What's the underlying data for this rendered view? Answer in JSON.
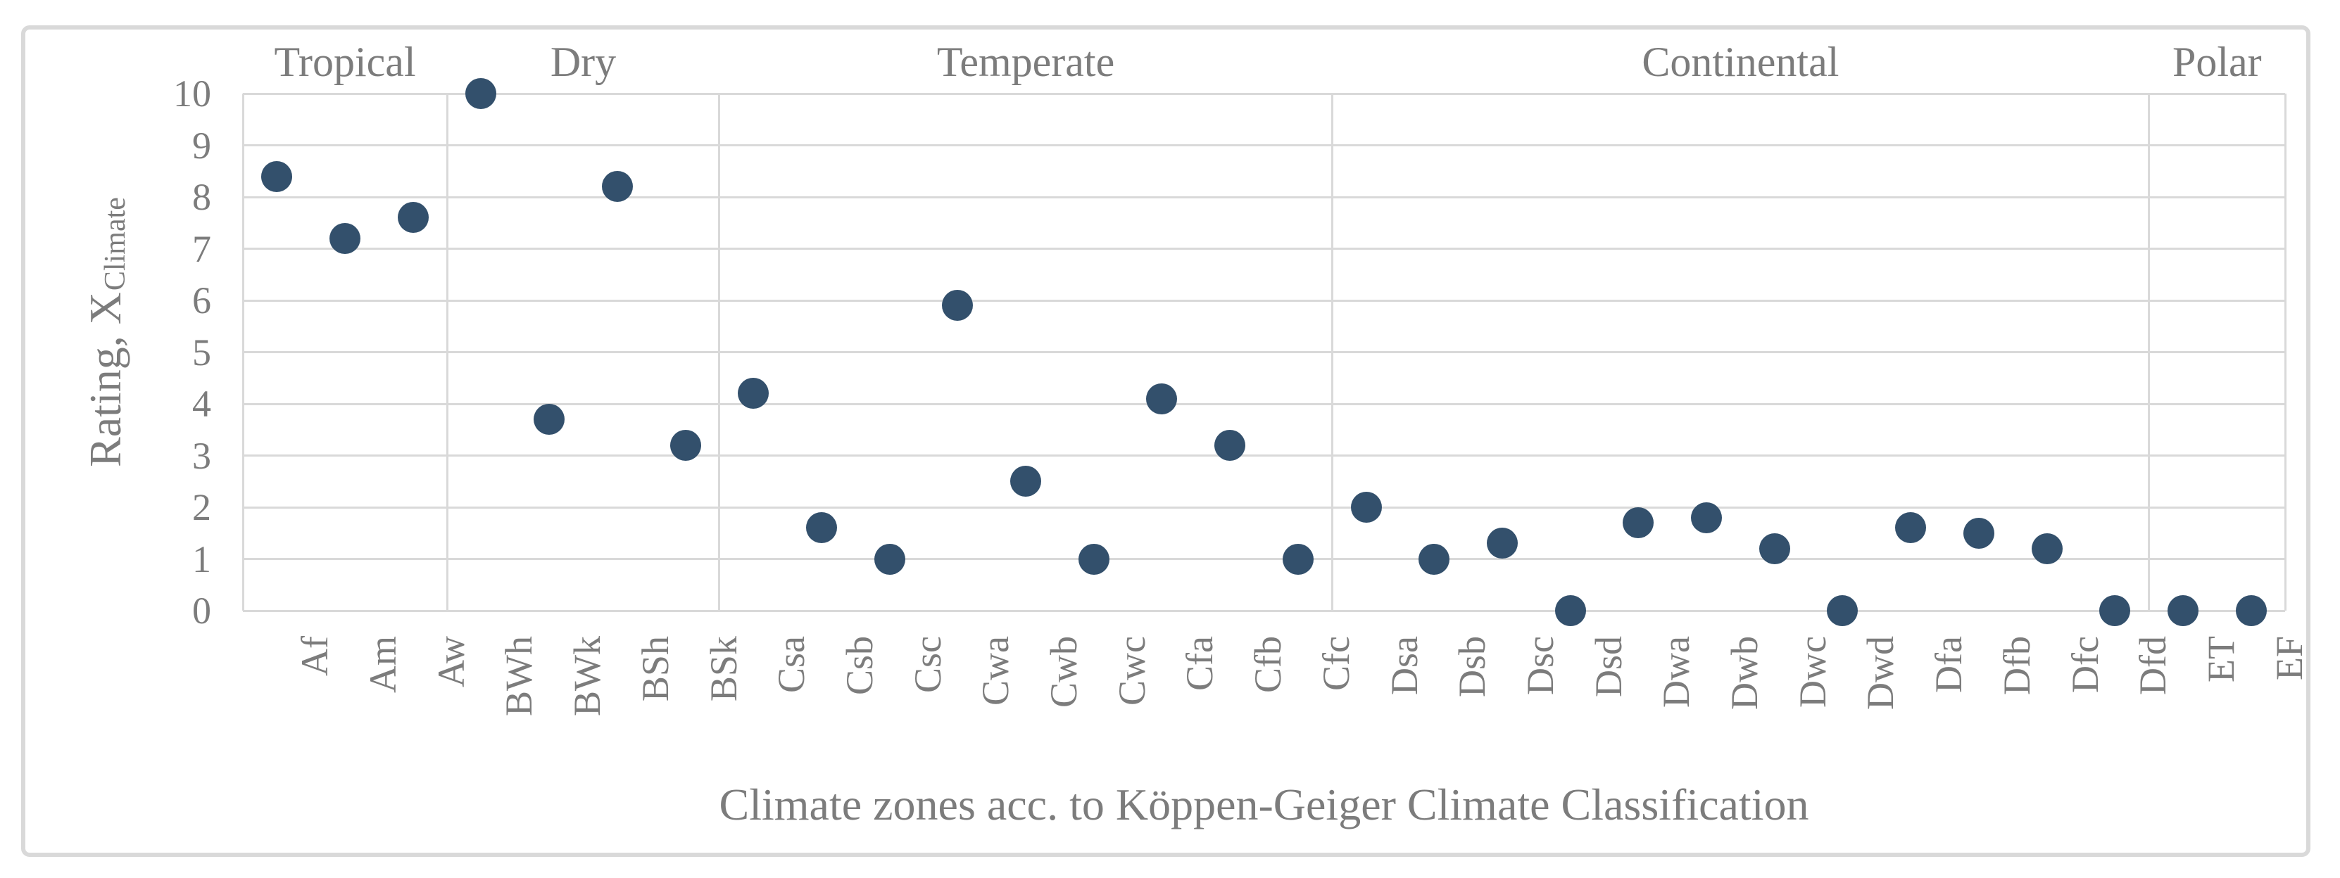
{
  "figure": {
    "background": "#ffffff",
    "border_color": "#d9d9d9",
    "text_color": "#7c7c7c"
  },
  "chart_data": {
    "type": "scatter",
    "title": "",
    "xlabel": "Climate zones acc. to Köppen-Geiger Climate Classification",
    "ylabel_main": "Rating, X",
    "ylabel_subscript": "Climate",
    "ylim": [
      0,
      10
    ],
    "yticks": [
      0,
      1,
      2,
      3,
      4,
      5,
      6,
      7,
      8,
      9,
      10
    ],
    "grid": true,
    "legend_position": "none",
    "marker_color": "#33506c",
    "gridline_color": "#d9d9d9",
    "categories": [
      "Af",
      "Am",
      "Aw",
      "BWh",
      "BWk",
      "BSh",
      "BSk",
      "Csa",
      "Csb",
      "Csc",
      "Cwa",
      "Cwb",
      "Cwc",
      "Cfa",
      "Cfb",
      "Cfc",
      "Dsa",
      "Dsb",
      "Dsc",
      "Dsd",
      "Dwa",
      "Dwb",
      "Dwc",
      "Dwd",
      "Dfa",
      "Dfb",
      "Dfc",
      "Dfd",
      "ET",
      "EF"
    ],
    "values": [
      8.4,
      7.2,
      7.6,
      10,
      3.7,
      8.2,
      3.2,
      4.2,
      1.6,
      1.0,
      5.9,
      2.5,
      1.0,
      4.1,
      3.2,
      1.0,
      2.0,
      1.0,
      1.3,
      0,
      1.7,
      1.8,
      1.2,
      0,
      1.6,
      1.5,
      1.2,
      0,
      0,
      0
    ],
    "groups": [
      {
        "label": "Tropical",
        "count": 3
      },
      {
        "label": "Dry",
        "count": 4
      },
      {
        "label": "Temperate",
        "count": 9
      },
      {
        "label": "Continental",
        "count": 12
      },
      {
        "label": "Polar",
        "count": 2
      }
    ]
  }
}
